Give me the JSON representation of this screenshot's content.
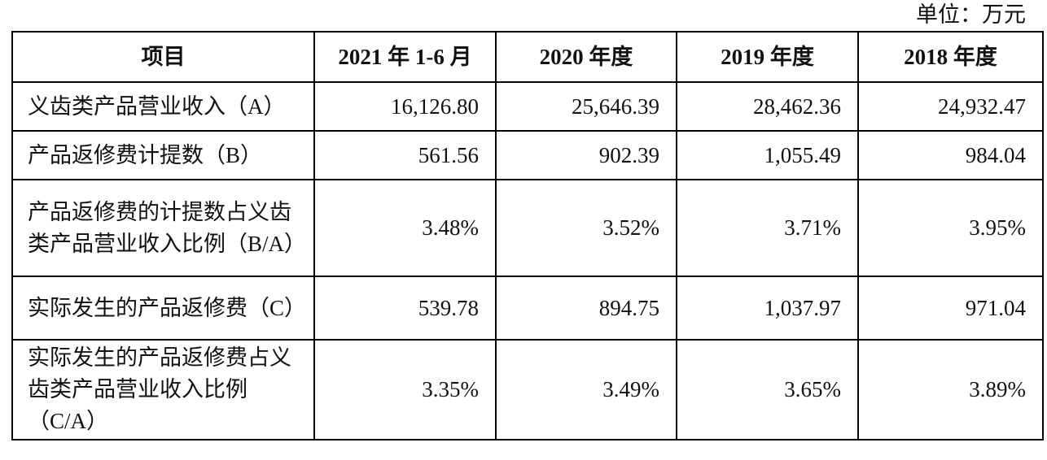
{
  "unit": "单位：万元",
  "table": {
    "header": [
      "项目",
      "2021 年 1-6 月",
      "2020 年度",
      "2019 年度",
      "2018 年度"
    ],
    "rows": [
      [
        "义齿类产品营业收入（A）",
        "16,126.80",
        "25,646.39",
        "28,462.36",
        "24,932.47"
      ],
      [
        "产品返修费计提数（B）",
        "561.56",
        "902.39",
        "1,055.49",
        "984.04"
      ],
      [
        "产品返修费的计提数占义齿类产品营业收入比例（B/A）",
        "3.48%",
        "3.52%",
        "3.71%",
        "3.95%"
      ],
      [
        "实际发生的产品返修费（C）",
        "539.78",
        "894.75",
        "1,037.97",
        "971.04"
      ],
      [
        "实际发生的产品返修费占义齿类产品营业收入比例（C/A）",
        "3.35%",
        "3.49%",
        "3.65%",
        "3.89%"
      ]
    ]
  }
}
